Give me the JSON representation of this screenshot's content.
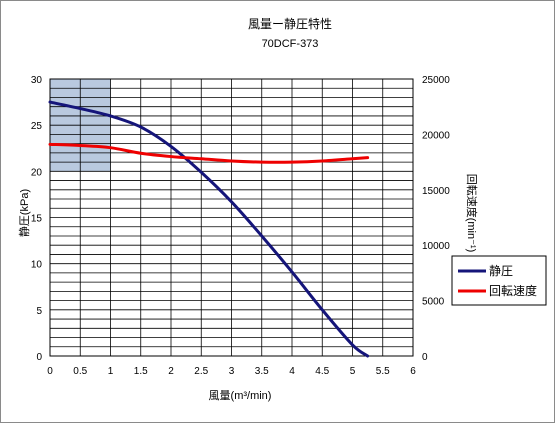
{
  "chart_data": {
    "type": "line",
    "title": "風量ー静圧特性",
    "subtitle": "70DCF-373",
    "xlabel": "風量(m³/min)",
    "ylabel": "静圧(kPa)",
    "y2label": "回転速度(min⁻¹)",
    "xlim": [
      0,
      6
    ],
    "ylim": [
      0,
      30
    ],
    "y2lim": [
      0,
      25000
    ],
    "xticks": [
      "0",
      "0.5",
      "1",
      "1.5",
      "2",
      "2.5",
      "3",
      "3.5",
      "4",
      "4.5",
      "5",
      "5.5",
      "6"
    ],
    "yticks": [
      "0",
      "5",
      "10",
      "15",
      "20",
      "25",
      "30"
    ],
    "y2ticks": [
      "0",
      "5000",
      "10000",
      "15000",
      "20000",
      "25000"
    ],
    "grid": true,
    "legend_position": "right",
    "highlight_region": {
      "x": [
        0,
        1
      ],
      "y": [
        20,
        30
      ],
      "color": "#b9c9df"
    },
    "series": [
      {
        "name": "静圧",
        "axis": "left",
        "color": "#15157a",
        "x": [
          0,
          0.5,
          1.0,
          1.5,
          2.0,
          2.5,
          3.0,
          3.5,
          4.0,
          4.5,
          5.0,
          5.25
        ],
        "y": [
          27.5,
          26.8,
          26.0,
          24.8,
          22.7,
          19.9,
          16.7,
          13.0,
          9.1,
          5.0,
          1.2,
          0.0
        ]
      },
      {
        "name": "回転速度",
        "axis": "right",
        "color": "#ee0000",
        "x": [
          0,
          0.5,
          1.0,
          1.5,
          2.0,
          2.5,
          3.0,
          3.5,
          4.0,
          4.5,
          5.0,
          5.25
        ],
        "y": [
          19100,
          19000,
          18800,
          18300,
          18000,
          17800,
          17600,
          17500,
          17500,
          17600,
          17800,
          17900
        ]
      }
    ]
  }
}
